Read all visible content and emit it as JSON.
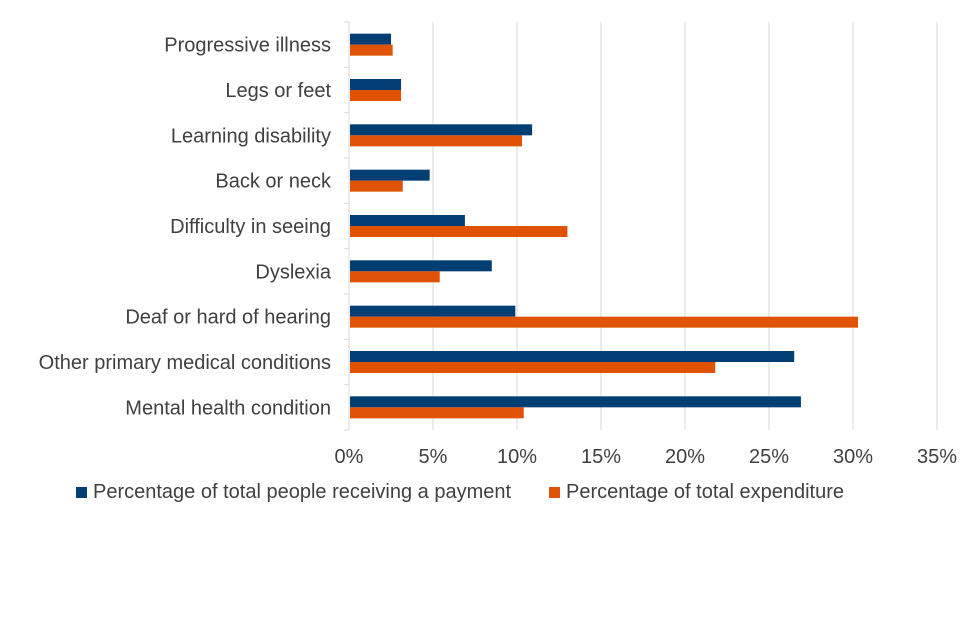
{
  "chart_data": {
    "type": "bar",
    "orientation": "horizontal",
    "categories": [
      "Progressive illness",
      "Legs or feet",
      "Learning disability",
      "Back or neck",
      "Difficulty in seeing",
      "Dyslexia",
      "Deaf or hard of hearing",
      "Other primary medical conditions",
      "Mental health condition"
    ],
    "series": [
      {
        "name": "Percentage of total people receiving a payment",
        "color": "#003e74",
        "values": [
          2.5,
          3.1,
          10.9,
          4.8,
          6.9,
          8.5,
          9.9,
          26.5,
          26.9
        ]
      },
      {
        "name": "Percentage of total expenditure",
        "color": "#e05206",
        "values": [
          2.6,
          3.1,
          10.3,
          3.2,
          13.0,
          5.4,
          30.3,
          21.8,
          10.4
        ]
      }
    ],
    "xlim": [
      0,
      35
    ],
    "xticks": [
      "0%",
      "5%",
      "10%",
      "15%",
      "20%",
      "25%",
      "30%",
      "35%"
    ],
    "xtick_values": [
      0,
      5,
      10,
      15,
      20,
      25,
      30,
      35
    ],
    "grid": "vertical",
    "legend_position": "bottom"
  }
}
